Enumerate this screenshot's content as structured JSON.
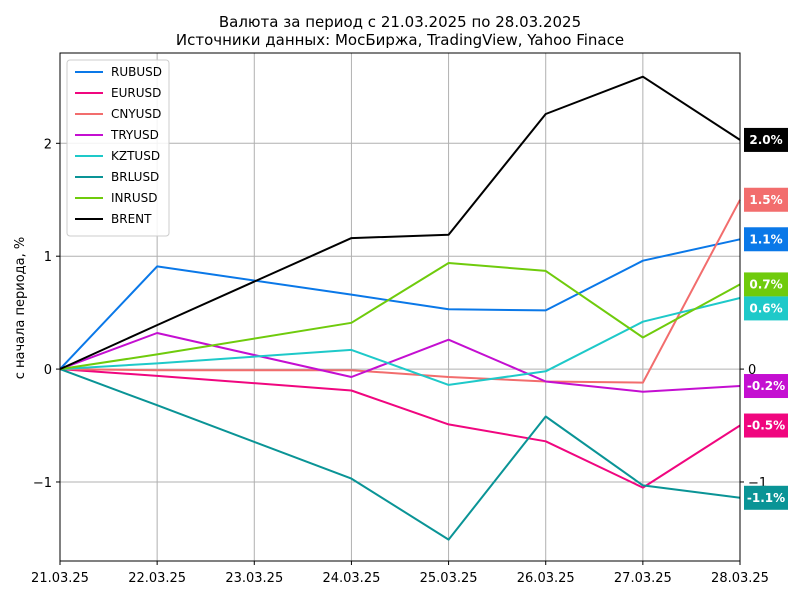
{
  "chart_data": {
    "type": "line",
    "title": "Валюта за период с 21.03.2025 по 28.03.2025",
    "subtitle": "Источники данных: МосБиржа, TradingView, Yahoo Finace",
    "xlabel": "",
    "ylabel": "с начала периода, %",
    "categories": [
      "21.03.25",
      "22.03.25",
      "23.03.25",
      "24.03.25",
      "25.03.25",
      "26.03.25",
      "27.03.25",
      "28.03.25"
    ],
    "ylim": [
      -1.7,
      2.8
    ],
    "left_ticks": [
      "−1",
      "0",
      "1",
      "2"
    ],
    "left_tick_values": [
      -1,
      0,
      1,
      2
    ],
    "right_ticks": [
      "−1",
      "0"
    ],
    "right_tick_values": [
      -1,
      0
    ],
    "grid": true,
    "legend_position": "top-left",
    "series": [
      {
        "name": "RUBUSD",
        "color": "#0a78e8",
        "x": [
          0,
          1,
          3,
          4,
          5,
          6,
          7
        ],
        "values": [
          0,
          0.91,
          0.66,
          0.53,
          0.52,
          0.96,
          1.15
        ],
        "badge": "1.1%"
      },
      {
        "name": "EURUSD",
        "color": "#f0067f",
        "x": [
          0,
          1,
          3,
          4,
          5,
          6,
          7
        ],
        "values": [
          0,
          -0.06,
          -0.19,
          -0.49,
          -0.64,
          -1.05,
          -0.5
        ],
        "badge": "-0.5%"
      },
      {
        "name": "CNYUSD",
        "color": "#f26d6d",
        "x": [
          0,
          1,
          3,
          4,
          5,
          6,
          7
        ],
        "values": [
          0,
          -0.01,
          -0.01,
          -0.07,
          -0.11,
          -0.12,
          1.5
        ],
        "badge": "1.5%"
      },
      {
        "name": "TRYUSD",
        "color": "#c40fd1",
        "x": [
          0,
          1,
          3,
          4,
          5,
          6,
          7
        ],
        "values": [
          0,
          0.32,
          -0.07,
          0.26,
          -0.11,
          -0.2,
          -0.15
        ],
        "badge": "-0.2%"
      },
      {
        "name": "KZTUSD",
        "color": "#1ec9c9",
        "x": [
          0,
          1,
          3,
          4,
          5,
          6,
          7
        ],
        "values": [
          0,
          0.05,
          0.17,
          -0.14,
          -0.02,
          0.42,
          0.63
        ],
        "badge": "0.6%"
      },
      {
        "name": "BRLUSD",
        "color": "#0a9496",
        "x": [
          0,
          1,
          3,
          4,
          5,
          6,
          7
        ],
        "values": [
          0,
          -0.32,
          -0.97,
          -1.51,
          -0.42,
          -1.03,
          -1.14
        ],
        "badge": "-1.1%"
      },
      {
        "name": "INRUSD",
        "color": "#6fcb0c",
        "x": [
          0,
          1,
          3,
          4,
          5,
          6,
          7
        ],
        "values": [
          0,
          0.13,
          0.41,
          0.94,
          0.87,
          0.28,
          0.75
        ],
        "badge": "0.7%"
      },
      {
        "name": "BRENT",
        "color": "#000000",
        "x": [
          0,
          1,
          3,
          4,
          5,
          6,
          7
        ],
        "values": [
          0,
          0.39,
          1.16,
          1.19,
          2.26,
          2.59,
          2.03
        ],
        "badge": "2.0%"
      }
    ]
  }
}
